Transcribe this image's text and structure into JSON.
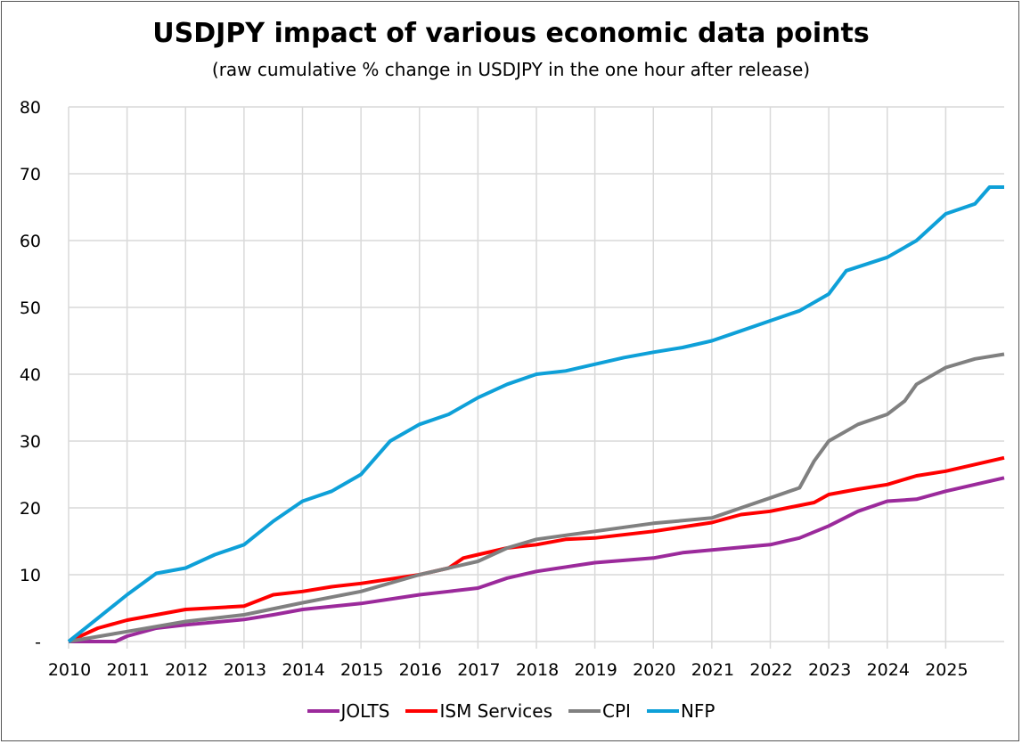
{
  "chart_data": {
    "type": "line",
    "title": "USDJPY impact of various economic data points",
    "subtitle": "(raw cumulative % change in USDJPY in the one hour after release)",
    "xlim": [
      2010,
      2026
    ],
    "ylim": [
      0,
      80
    ],
    "x_ticks": [
      "2010",
      "2011",
      "2012",
      "2013",
      "2014",
      "2015",
      "2016",
      "2017",
      "2018",
      "2019",
      "2020",
      "2021",
      "2022",
      "2023",
      "2024",
      "2025"
    ],
    "y_ticks": [
      {
        "v": 0,
        "label": "-"
      },
      {
        "v": 10,
        "label": "10"
      },
      {
        "v": 20,
        "label": "20"
      },
      {
        "v": 30,
        "label": "30"
      },
      {
        "v": 40,
        "label": "40"
      },
      {
        "v": 50,
        "label": "50"
      },
      {
        "v": 60,
        "label": "60"
      },
      {
        "v": 70,
        "label": "70"
      },
      {
        "v": 80,
        "label": "80"
      }
    ],
    "grid": true,
    "legend_position": "bottom",
    "series": [
      {
        "name": "JOLTS",
        "color": "#9b2a9b",
        "points": [
          [
            2010,
            0
          ],
          [
            2010.8,
            0
          ],
          [
            2011,
            0.8
          ],
          [
            2011.5,
            2
          ],
          [
            2012,
            2.5
          ],
          [
            2013,
            3.3
          ],
          [
            2013.5,
            4
          ],
          [
            2014,
            4.8
          ],
          [
            2015,
            5.7
          ],
          [
            2016,
            7
          ],
          [
            2016.5,
            7.5
          ],
          [
            2017,
            8
          ],
          [
            2017.5,
            9.5
          ],
          [
            2018,
            10.5
          ],
          [
            2019,
            11.8
          ],
          [
            2020,
            12.5
          ],
          [
            2020.5,
            13.3
          ],
          [
            2021,
            13.7
          ],
          [
            2022,
            14.5
          ],
          [
            2022.5,
            15.5
          ],
          [
            2023,
            17.3
          ],
          [
            2023.5,
            19.5
          ],
          [
            2024,
            21
          ],
          [
            2024.5,
            21.3
          ],
          [
            2025,
            22.5
          ],
          [
            2025.5,
            23.5
          ],
          [
            2026,
            24.5
          ]
        ]
      },
      {
        "name": "ISM Services",
        "color": "#ff0000",
        "points": [
          [
            2010,
            0
          ],
          [
            2010.5,
            2
          ],
          [
            2011,
            3.2
          ],
          [
            2011.5,
            4
          ],
          [
            2012,
            4.8
          ],
          [
            2013,
            5.3
          ],
          [
            2013.5,
            7
          ],
          [
            2014,
            7.5
          ],
          [
            2014.5,
            8.2
          ],
          [
            2015,
            8.7
          ],
          [
            2016,
            10
          ],
          [
            2016.5,
            11
          ],
          [
            2016.75,
            12.5
          ],
          [
            2017,
            13
          ],
          [
            2017.5,
            14
          ],
          [
            2018,
            14.5
          ],
          [
            2018.5,
            15.3
          ],
          [
            2019,
            15.5
          ],
          [
            2020,
            16.5
          ],
          [
            2021,
            17.8
          ],
          [
            2021.5,
            19
          ],
          [
            2022,
            19.5
          ],
          [
            2022.75,
            20.8
          ],
          [
            2023,
            22
          ],
          [
            2023.5,
            22.8
          ],
          [
            2024,
            23.5
          ],
          [
            2024.5,
            24.8
          ],
          [
            2025,
            25.5
          ],
          [
            2025.5,
            26.5
          ],
          [
            2026,
            27.5
          ]
        ]
      },
      {
        "name": "CPI",
        "color": "#808080",
        "points": [
          [
            2010,
            0
          ],
          [
            2011,
            1.5
          ],
          [
            2012,
            3
          ],
          [
            2013,
            4
          ],
          [
            2014,
            5.8
          ],
          [
            2015,
            7.5
          ],
          [
            2016,
            10
          ],
          [
            2017,
            12
          ],
          [
            2017.5,
            14
          ],
          [
            2018,
            15.3
          ],
          [
            2019,
            16.5
          ],
          [
            2020,
            17.7
          ],
          [
            2021,
            18.5
          ],
          [
            2021.5,
            20
          ],
          [
            2022,
            21.5
          ],
          [
            2022.5,
            23
          ],
          [
            2022.75,
            27
          ],
          [
            2023,
            30
          ],
          [
            2023.5,
            32.5
          ],
          [
            2024,
            34
          ],
          [
            2024.3,
            36
          ],
          [
            2024.5,
            38.5
          ],
          [
            2025,
            41
          ],
          [
            2025.5,
            42.3
          ],
          [
            2026,
            43
          ]
        ]
      },
      {
        "name": "NFP",
        "color": "#0ea0d8",
        "points": [
          [
            2010,
            0
          ],
          [
            2010.5,
            3.5
          ],
          [
            2011,
            7
          ],
          [
            2011.5,
            10.2
          ],
          [
            2012,
            11
          ],
          [
            2012.5,
            13
          ],
          [
            2013,
            14.5
          ],
          [
            2013.5,
            18
          ],
          [
            2014,
            21
          ],
          [
            2014.5,
            22.5
          ],
          [
            2015,
            25
          ],
          [
            2015.5,
            30
          ],
          [
            2016,
            32.5
          ],
          [
            2016.5,
            34
          ],
          [
            2017,
            36.5
          ],
          [
            2017.5,
            38.5
          ],
          [
            2018,
            40
          ],
          [
            2018.5,
            40.5
          ],
          [
            2019,
            41.5
          ],
          [
            2019.5,
            42.5
          ],
          [
            2020,
            43.3
          ],
          [
            2020.5,
            44
          ],
          [
            2021,
            45
          ],
          [
            2021.5,
            46.5
          ],
          [
            2022,
            48
          ],
          [
            2022.5,
            49.5
          ],
          [
            2023,
            52
          ],
          [
            2023.3,
            55.5
          ],
          [
            2024,
            57.5
          ],
          [
            2024.5,
            60
          ],
          [
            2025,
            64
          ],
          [
            2025.5,
            65.5
          ],
          [
            2025.75,
            68
          ],
          [
            2026,
            68
          ]
        ]
      }
    ]
  }
}
